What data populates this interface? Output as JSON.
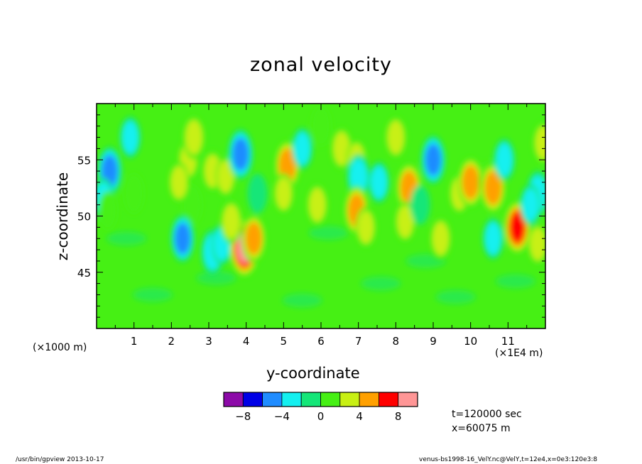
{
  "chart_data": {
    "type": "heatmap",
    "title": "zonal velocity",
    "xlabel": "y-coordinate",
    "ylabel": "z-coordinate",
    "x_unit_left": "(×1000 m)",
    "x_unit_right": "(×1E4 m)",
    "xlim": [
      0,
      12
    ],
    "ylim": [
      40,
      60
    ],
    "x_ticks": [
      1,
      2,
      3,
      4,
      5,
      6,
      7,
      8,
      9,
      10,
      11
    ],
    "x_tick_labels": [
      "1",
      "2",
      "3",
      "4",
      "5",
      "6",
      "7",
      "8",
      "9",
      "10",
      "11"
    ],
    "y_ticks": [
      45,
      50,
      55
    ],
    "y_tick_labels": [
      "45",
      "50",
      "55"
    ],
    "colorbar": {
      "levels": [
        -10,
        -8,
        -6,
        -4,
        -2,
        0,
        2,
        4,
        6,
        8,
        10
      ],
      "colors": [
        "#8c0aa8",
        "#0000e6",
        "#1f8cff",
        "#14f0f0",
        "#14e678",
        "#46f014",
        "#c8f014",
        "#ffa000",
        "#ff0000",
        "#ff9696"
      ],
      "tick_values": [
        -8,
        -4,
        0,
        4,
        8
      ],
      "tick_labels": [
        "−8",
        "−4",
        "0",
        "4",
        "8"
      ]
    },
    "features": [
      {
        "x": 0.35,
        "z": 54.0,
        "value": -5.0
      },
      {
        "x": 0.18,
        "z": 51.5,
        "value": -3.0
      },
      {
        "x": 0.3,
        "z": 50.5,
        "value": 1.5
      },
      {
        "x": 0.9,
        "z": 57.0,
        "value": -2.5
      },
      {
        "x": 1.0,
        "z": 52.0,
        "value": 2.0
      },
      {
        "x": 2.45,
        "z": 55.0,
        "value": 2.5
      },
      {
        "x": 2.55,
        "z": 51.0,
        "value": 2.0
      },
      {
        "x": 2.6,
        "z": 57.0,
        "value": 3.5
      },
      {
        "x": 3.1,
        "z": 54.0,
        "value": 2.5
      },
      {
        "x": 3.45,
        "z": 53.5,
        "value": 2.2
      },
      {
        "x": 2.3,
        "z": 48.0,
        "value": -4.5
      },
      {
        "x": 3.1,
        "z": 46.8,
        "value": -4.0
      },
      {
        "x": 3.35,
        "z": 47.5,
        "value": -2.5
      },
      {
        "x": 3.95,
        "z": 47.2,
        "value": 9.0
      },
      {
        "x": 4.2,
        "z": 48.0,
        "value": 5.0
      },
      {
        "x": 3.6,
        "z": 49.5,
        "value": 3.5
      },
      {
        "x": 3.85,
        "z": 55.5,
        "value": -5.5
      },
      {
        "x": 4.3,
        "z": 52.0,
        "value": -2.0
      },
      {
        "x": 5.1,
        "z": 54.5,
        "value": 6.0
      },
      {
        "x": 5.0,
        "z": 52.0,
        "value": 2.2
      },
      {
        "x": 5.5,
        "z": 56.0,
        "value": -2.5
      },
      {
        "x": 5.9,
        "z": 51.0,
        "value": 3.0
      },
      {
        "x": 6.0,
        "z": 58.0,
        "value": 2.0
      },
      {
        "x": 6.55,
        "z": 56.0,
        "value": 3.0
      },
      {
        "x": 6.95,
        "z": 55.0,
        "value": 2.5
      },
      {
        "x": 7.0,
        "z": 53.5,
        "value": -4.0
      },
      {
        "x": 6.95,
        "z": 50.5,
        "value": 5.5
      },
      {
        "x": 7.2,
        "z": 49.0,
        "value": 2.5
      },
      {
        "x": 7.55,
        "z": 53.0,
        "value": -2.5
      },
      {
        "x": 8.0,
        "z": 57.0,
        "value": 3.0
      },
      {
        "x": 8.35,
        "z": 52.5,
        "value": 6.0
      },
      {
        "x": 8.25,
        "z": 49.5,
        "value": 2.5
      },
      {
        "x": 8.65,
        "z": 51.0,
        "value": -2.0
      },
      {
        "x": 9.0,
        "z": 55.0,
        "value": -5.0
      },
      {
        "x": 9.2,
        "z": 48.0,
        "value": 3.0
      },
      {
        "x": 9.7,
        "z": 52.0,
        "value": 2.5
      },
      {
        "x": 10.0,
        "z": 53.0,
        "value": 6.0
      },
      {
        "x": 10.5,
        "z": 53.0,
        "value": 3.0
      },
      {
        "x": 10.6,
        "z": 52.5,
        "value": 6.0
      },
      {
        "x": 10.9,
        "z": 55.0,
        "value": -2.8
      },
      {
        "x": 11.25,
        "z": 49.0,
        "value": 7.0
      },
      {
        "x": 11.8,
        "z": 52.0,
        "value": -4.0
      },
      {
        "x": 11.6,
        "z": 51.0,
        "value": -2.5
      },
      {
        "x": 11.8,
        "z": 47.5,
        "value": 2.5
      },
      {
        "x": 11.95,
        "z": 56.5,
        "value": 3.0
      },
      {
        "x": 10.6,
        "z": 48.0,
        "value": -2.5
      },
      {
        "x": 2.2,
        "z": 53.0,
        "value": 2.5
      }
    ]
  },
  "info": {
    "time": "t=120000 sec",
    "position": "x=60075 m"
  },
  "footer": {
    "left": "/usr/bin/gpview  2013-10-17",
    "right": "venus-bs1998-16_VelY.nc@VelY,t=12e4,x=0e3:120e3:8"
  }
}
